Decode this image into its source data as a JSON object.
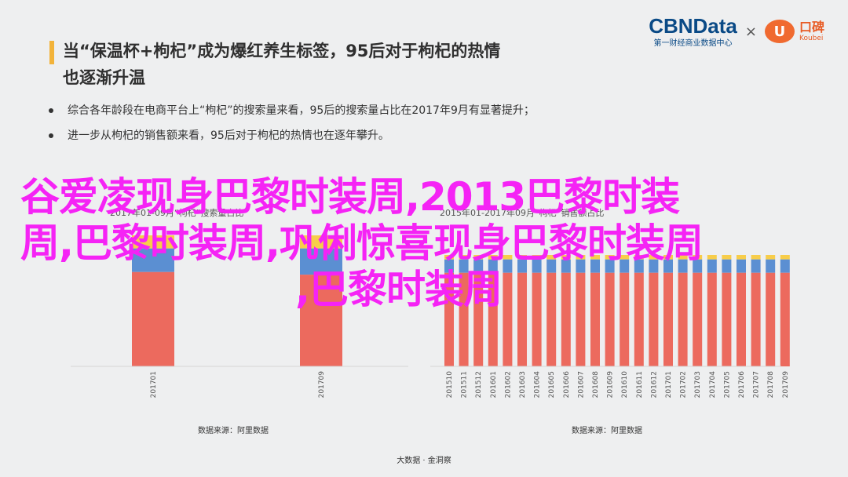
{
  "title": "当“保温杯+枸杞”成为爆红养生标签，95后对于枸杞的热情也逐渐升温",
  "title_lines": [
    "当“保温杯+枸杞”成为爆红养生标签，95后对于枸杞的热情",
    "也逐渐升温"
  ],
  "bullets": [
    "综合各年龄段在电商平台上“枸杞”的搜索量来看，95后的搜索量占比在2017年9月有显著提升；",
    "进一步从枸杞的销售额来看，95后对于枸杞的热情也在逐年攀升。"
  ],
  "logos": {
    "cbn_name": "CBNData",
    "cbn_sub": "第一财经商业数据中心",
    "times": "×",
    "koubei_name": "口碑",
    "koubei_sub": "Koubei",
    "koubei_glyph": "U"
  },
  "overlay_lines": [
    "谷爱凌现身巴黎时装周,2013巴黎时装",
    "周,巴黎时装周,巩俐惊喜现身巴黎时装周",
    ",巴黎时装周"
  ],
  "legend_left_fragment": "2017年01-09月“枸杞”搜索量占比",
  "legend_right_fragment": "2015年01-2017年09月“枸杞”销售额占比",
  "colors": {
    "red": "#ec6a5e",
    "blue": "#5b8fd2",
    "yellow": "#f7cd4a",
    "accent": "#f2b33a",
    "overlay": "#f523f5"
  },
  "chart_data": [
    {
      "type": "bar",
      "stacked": true,
      "categories": [
        "201701",
        "201709"
      ],
      "series": [
        {
          "values": [
            0.72,
            0.7
          ]
        },
        {
          "values": [
            0.18,
            0.2
          ]
        },
        {
          "values": [
            0.1,
            0.1
          ]
        }
      ],
      "source": "数据来源：阿里数据"
    },
    {
      "type": "bar",
      "stacked": true,
      "categories": [
        "201510",
        "201511",
        "201512",
        "201601",
        "201602",
        "201603",
        "201604",
        "201605",
        "201606",
        "201607",
        "201608",
        "201609",
        "201610",
        "201611",
        "201612",
        "201701",
        "201702",
        "201703",
        "201704",
        "201705",
        "201706",
        "201707",
        "201708",
        "201709"
      ],
      "series": [
        {
          "values": [
            0.84,
            0.84,
            0.84,
            0.84,
            0.84,
            0.84,
            0.84,
            0.84,
            0.84,
            0.84,
            0.84,
            0.84,
            0.84,
            0.84,
            0.84,
            0.84,
            0.84,
            0.84,
            0.84,
            0.84,
            0.84,
            0.84,
            0.84,
            0.84
          ]
        },
        {
          "values": [
            0.12,
            0.12,
            0.12,
            0.12,
            0.12,
            0.12,
            0.12,
            0.12,
            0.12,
            0.12,
            0.12,
            0.12,
            0.12,
            0.12,
            0.12,
            0.12,
            0.12,
            0.12,
            0.12,
            0.12,
            0.12,
            0.12,
            0.12,
            0.12
          ]
        },
        {
          "values": [
            0.04,
            0.04,
            0.04,
            0.04,
            0.04,
            0.04,
            0.04,
            0.04,
            0.04,
            0.04,
            0.04,
            0.04,
            0.04,
            0.04,
            0.04,
            0.04,
            0.04,
            0.04,
            0.04,
            0.04,
            0.04,
            0.04,
            0.04,
            0.04
          ]
        }
      ],
      "source": "数据来源：阿里数据"
    }
  ],
  "footer": "大数据 · 金洞察"
}
